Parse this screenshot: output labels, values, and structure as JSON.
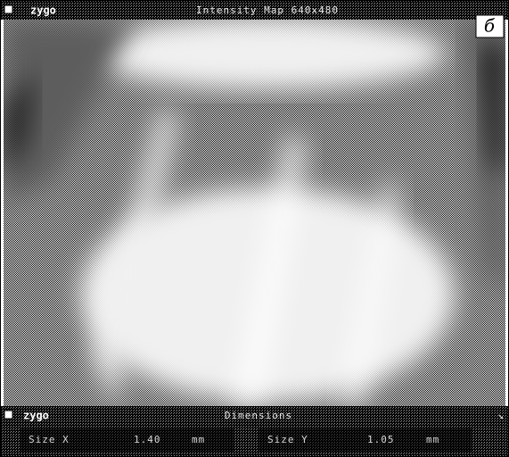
{
  "window": {
    "logo": "zygo",
    "title": "Intensity Map 640x480",
    "panel_label": "б"
  },
  "dimensions": {
    "logo": "zygo",
    "title": "Dimensions",
    "fields": [
      {
        "label": "Size X",
        "value": "1.40",
        "unit": "mm"
      },
      {
        "label": "Size Y",
        "value": "1.05",
        "unit": "mm"
      }
    ]
  }
}
